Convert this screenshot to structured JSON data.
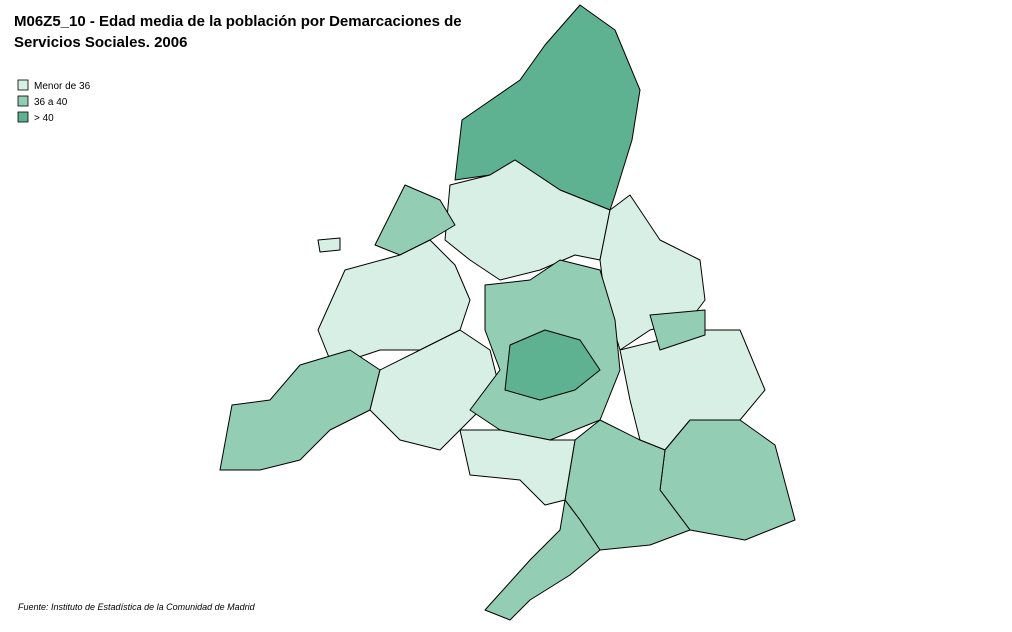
{
  "header": {
    "title_lines": [
      "M06Z5_10 - Edad media de la población por  Demarcaciones de",
      "Servicios Sociales.  2006"
    ]
  },
  "legend": {
    "items": [
      {
        "label": "Menor de 36",
        "color": "#d8efe5"
      },
      {
        "label": "36 a 40",
        "color": "#93cdb4"
      },
      {
        "label": "> 40",
        "color": "#5fb291"
      }
    ]
  },
  "source": "Fuente: Instituto de Estadística de la Comunidad de Madrid"
}
